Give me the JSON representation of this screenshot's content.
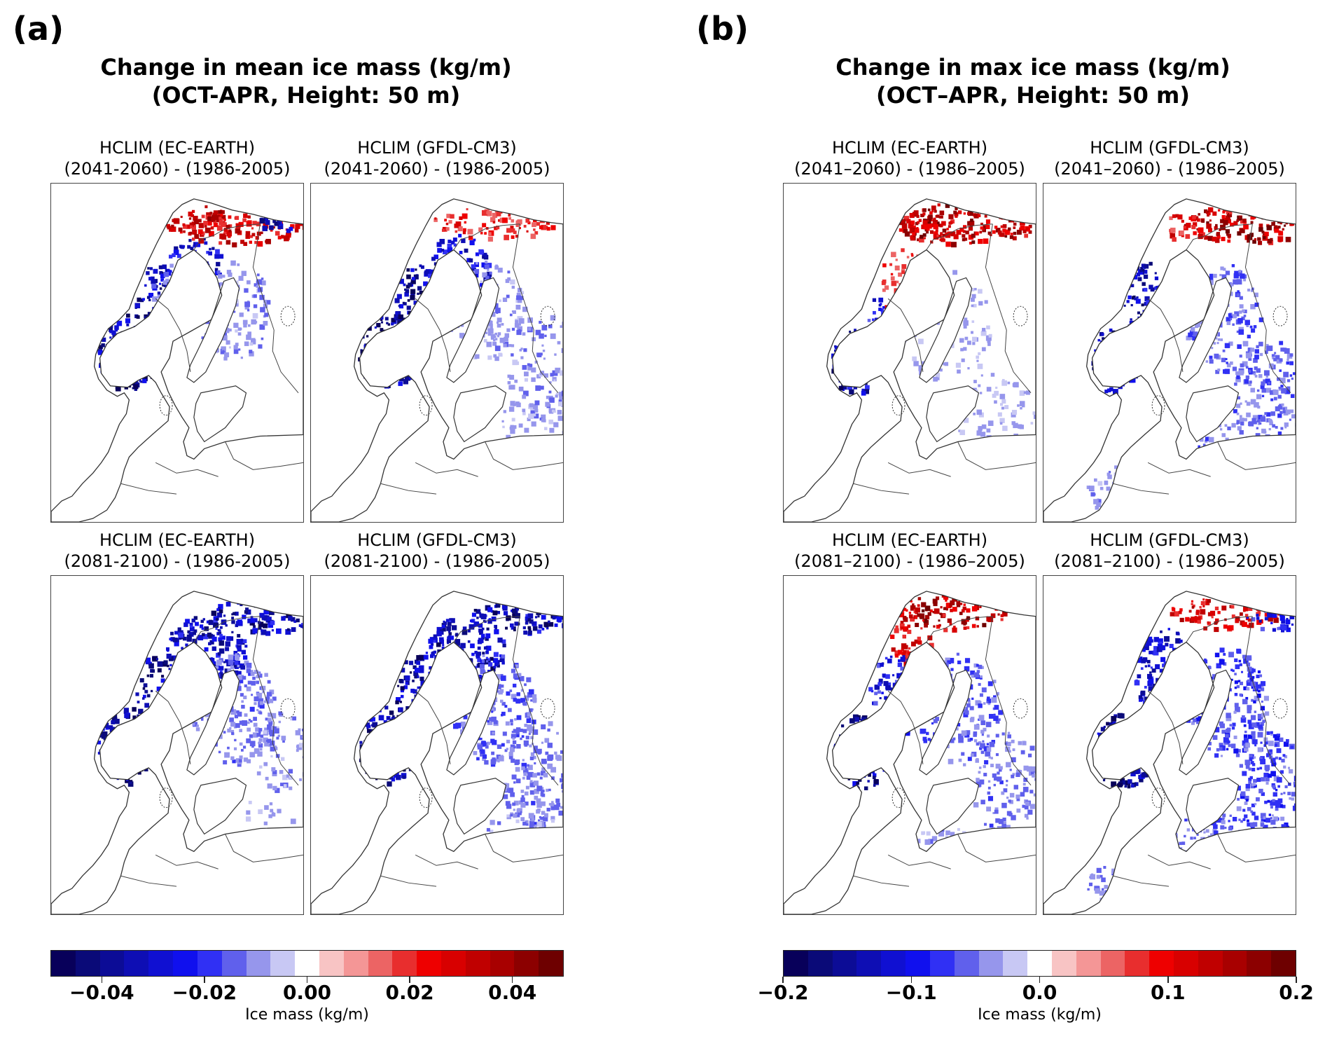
{
  "figure": {
    "panel_a": {
      "letter": "(a)",
      "title_line1": "Change in mean ice mass (kg/m)",
      "title_line2": "(OCT-APR, Height: 50 m)",
      "subplots": [
        {
          "line1": "HCLIM (EC-EARTH)",
          "line2": "(2041-2060) - (1986-2005)",
          "pattern": "a_ec_mid"
        },
        {
          "line1": "HCLIM (GFDL-CM3)",
          "line2": "(2041-2060) - (1986-2005)",
          "pattern": "a_gf_mid"
        },
        {
          "line1": "HCLIM (EC-EARTH)",
          "line2": "(2081-2100) - (1986-2005)",
          "pattern": "a_ec_end"
        },
        {
          "line1": "HCLIM (GFDL-CM3)",
          "line2": "(2081-2100) - (1986-2005)",
          "pattern": "a_gf_end"
        }
      ],
      "colorbar": {
        "label": "Ice mass (kg/m)",
        "range": [
          -0.05,
          0.05
        ],
        "ticks": [
          {
            "value": -0.04,
            "label": "−0.04"
          },
          {
            "value": -0.02,
            "label": "−0.02"
          },
          {
            "value": 0.0,
            "label": "0.00"
          },
          {
            "value": 0.02,
            "label": "0.02"
          },
          {
            "value": 0.04,
            "label": "0.04"
          }
        ]
      }
    },
    "panel_b": {
      "letter": "(b)",
      "title_line1": "Change in max ice mass (kg/m)",
      "title_line2": "(OCT–APR, Height: 50 m)",
      "subplots": [
        {
          "line1": "HCLIM (EC-EARTH)",
          "line2": "(2041–2060) - (1986–2005)",
          "pattern": "b_ec_mid"
        },
        {
          "line1": "HCLIM (GFDL-CM3)",
          "line2": "(2041–2060) - (1986–2005)",
          "pattern": "b_gf_mid"
        },
        {
          "line1": "HCLIM (EC-EARTH)",
          "line2": "(2081–2100) - (1986–2005)",
          "pattern": "b_ec_end"
        },
        {
          "line1": "HCLIM (GFDL-CM3)",
          "line2": "(2081–2100) - (1986–2005)",
          "pattern": "b_gf_end"
        }
      ],
      "colorbar": {
        "label": "Ice mass (kg/m)",
        "range": [
          -0.2,
          0.2
        ],
        "ticks": [
          {
            "value": -0.2,
            "label": "−0.2"
          },
          {
            "value": -0.1,
            "label": "−0.1"
          },
          {
            "value": 0.0,
            "label": "0.0"
          },
          {
            "value": 0.1,
            "label": "0.1"
          },
          {
            "value": 0.2,
            "label": "0.2"
          }
        ]
      }
    },
    "colormap": [
      "#08005a",
      "#0a0a78",
      "#0c0c96",
      "#0e0eb4",
      "#1010d2",
      "#1010ee",
      "#3030f4",
      "#6060ec",
      "#9696ec",
      "#c8c8f4",
      "#ffffff",
      "#f8c4c4",
      "#f49696",
      "#ec6464",
      "#e82e2e",
      "#ee0000",
      "#d80000",
      "#c00000",
      "#a80000",
      "#8c0000",
      "#6e0000"
    ]
  },
  "chart_data": [
    {
      "type": "heatmap",
      "title": "Change in mean ice mass (kg/m) (OCT-APR, Height: 50 m)",
      "colorbar_label": "Ice mass (kg/m)",
      "colorbar_range": [
        -0.05,
        0.05
      ],
      "panels": [
        "HCLIM (EC-EARTH) (2041-2060) - (1986-2005)",
        "HCLIM (GFDL-CM3) (2041-2060) - (1986-2005)",
        "HCLIM (EC-EARTH) (2081-2100) - (1986-2005)",
        "HCLIM (GFDL-CM3) (2081-2100) - (1986-2005)"
      ]
    },
    {
      "type": "heatmap",
      "title": "Change in max ice mass (kg/m) (OCT–APR, Height: 50 m)",
      "colorbar_label": "Ice mass (kg/m)",
      "colorbar_range": [
        -0.2,
        0.2
      ],
      "panels": [
        "HCLIM (EC-EARTH) (2041–2060) - (1986–2005)",
        "HCLIM (GFDL-CM3) (2041–2060) - (1986–2005)",
        "HCLIM (EC-EARTH) (2081–2100) - (1986–2005)",
        "HCLIM (GFDL-CM3) (2081–2100) - (1986–2005)"
      ]
    }
  ]
}
